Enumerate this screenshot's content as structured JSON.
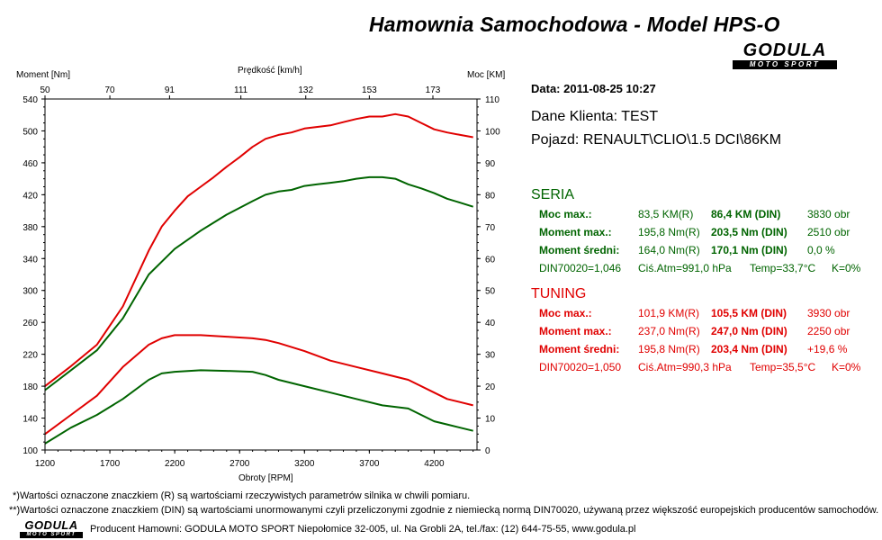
{
  "header": {
    "title": "Hamownia Samochodowa   -   Model HPS-O",
    "logo_main": "GODULA",
    "logo_sub": "MOTO SPORT"
  },
  "info": {
    "date": "Data: 2011-08-25  10:27",
    "client": "Dane Klienta: TEST",
    "vehicle": "Pojazd: RENAULT\\CLIO\\1.5 DCI\\86KM"
  },
  "seria": {
    "title": "SERIA",
    "rows": [
      {
        "label": "Moc max.:",
        "r": "83,5 KM(R)",
        "din": "86,4 KM (DIN)",
        "extra": "3830 obr"
      },
      {
        "label": "Moment max.:",
        "r": "195,8 Nm(R)",
        "din": "203,5 Nm (DIN)",
        "extra": "2510 obr"
      },
      {
        "label": "Moment średni:",
        "r": "164,0 Nm(R)",
        "din": "170,1 Nm (DIN)",
        "extra": "0,0 %"
      }
    ],
    "footer": {
      "din": "DIN70020=1,046",
      "atm": "Ciś.Atm=991,0 hPa",
      "temp": "Temp=33,7°C",
      "k": "K=0%"
    }
  },
  "tuning": {
    "title": "TUNING",
    "rows": [
      {
        "label": "Moc max.:",
        "r": "101,9 KM(R)",
        "din": "105,5 KM (DIN)",
        "extra": "3930 obr"
      },
      {
        "label": "Moment max.:",
        "r": "237,0 Nm(R)",
        "din": "247,0 Nm (DIN)",
        "extra": "2250 obr"
      },
      {
        "label": "Moment średni:",
        "r": "195,8 Nm(R)",
        "din": "203,4 Nm (DIN)",
        "extra": "+19,6 %"
      }
    ],
    "footer": {
      "din": "DIN70020=1,050",
      "atm": "Ciś.Atm=990,3 hPa",
      "temp": "Temp=35,5°C",
      "k": "K=0%"
    }
  },
  "notes": {
    "r": "*)Wartości oznaczone znaczkiem (R) są wartościami rzeczywistych parametrów silnika w chwili pomiaru.",
    "din": "**)Wartości oznaczone znaczkiem (DIN) są wartościami unormowanymi czyli przeliczonymi zgodnie z niemiecką normą DIN70020, używaną przez większość europejskich producentów samochodów.",
    "producer": "Producent Hamowni: GODULA MOTO SPORT Niepołomice 32-005, ul. Na Grobli 2A, tel./fax: (12) 644-75-55, www.godula.pl"
  },
  "colors": {
    "seria": "#006400",
    "tuning": "#e00000"
  },
  "chart_data": {
    "type": "line",
    "xlabel": "Obroty [RPM]",
    "ylabel_left": "Moment [Nm]",
    "ylabel_right": "Moc [KM]",
    "top_axis_label": "Prędkość [km/h]",
    "xlim": [
      1200,
      4530
    ],
    "ylim_left": [
      100,
      540
    ],
    "ylim_right": [
      0,
      110
    ],
    "x_ticks": [
      1200,
      1700,
      2200,
      2700,
      3200,
      3700,
      4200
    ],
    "y_left_ticks": [
      100,
      140,
      180,
      220,
      260,
      300,
      340,
      380,
      420,
      460,
      500,
      540
    ],
    "y_right_ticks": [
      0,
      10,
      20,
      30,
      40,
      50,
      60,
      70,
      80,
      90,
      100,
      110
    ],
    "top_ticks": [
      {
        "rpm": 1200,
        "label": "50"
      },
      {
        "rpm": 1700,
        "label": "70"
      },
      {
        "rpm": 2160,
        "label": "91"
      },
      {
        "rpm": 2710,
        "label": "111"
      },
      {
        "rpm": 3210,
        "label": "132"
      },
      {
        "rpm": 3700,
        "label": "153"
      },
      {
        "rpm": 4190,
        "label": "173"
      }
    ],
    "series": [
      {
        "group": "TUNING",
        "quantity": "Moment",
        "axis": "left",
        "color": "#e00000",
        "x": [
          1200,
          1400,
          1600,
          1800,
          2000,
          2100,
          2200,
          2300,
          2400,
          2500,
          2600,
          2700,
          2800,
          2900,
          3000,
          3100,
          3200,
          3300,
          3400,
          3500,
          3600,
          3700,
          3800,
          3900,
          4000,
          4100,
          4200,
          4300,
          4400,
          4500
        ],
        "y": [
          180,
          205,
          232,
          280,
          350,
          380,
          400,
          418,
          430,
          442,
          455,
          467,
          480,
          490,
          495,
          498,
          503,
          505,
          507,
          511,
          515,
          518,
          518,
          521,
          518,
          510,
          502,
          498,
          495,
          492
        ]
      },
      {
        "group": "SERIA",
        "quantity": "Moment",
        "axis": "left",
        "color": "#006400",
        "x": [
          1200,
          1400,
          1600,
          1800,
          2000,
          2200,
          2400,
          2600,
          2800,
          2900,
          3000,
          3100,
          3200,
          3300,
          3400,
          3500,
          3600,
          3700,
          3800,
          3900,
          4000,
          4100,
          4200,
          4300,
          4400,
          4500
        ],
        "y": [
          175,
          200,
          225,
          265,
          320,
          352,
          375,
          395,
          412,
          420,
          424,
          426,
          431,
          433,
          435,
          437,
          440,
          442,
          442,
          440,
          433,
          428,
          422,
          415,
          410,
          405
        ]
      },
      {
        "group": "TUNING",
        "quantity": "Moc",
        "axis": "right",
        "color": "#e00000",
        "x": [
          1200,
          1400,
          1600,
          1800,
          2000,
          2100,
          2200,
          2400,
          2600,
          2800,
          2900,
          3000,
          3200,
          3400,
          3600,
          3800,
          4000,
          4200,
          4300,
          4400,
          4500
        ],
        "y": [
          5,
          11,
          17,
          26,
          33,
          35,
          36,
          36,
          35.5,
          35,
          34.5,
          33.5,
          31,
          28,
          26,
          24,
          22,
          18,
          16,
          15,
          14
        ]
      },
      {
        "group": "SERIA",
        "quantity": "Moc",
        "axis": "right",
        "color": "#006400",
        "x": [
          1200,
          1400,
          1600,
          1800,
          2000,
          2100,
          2200,
          2400,
          2600,
          2800,
          2900,
          3000,
          3200,
          3400,
          3600,
          3800,
          4000,
          4200,
          4300,
          4400,
          4500
        ],
        "y": [
          2,
          7,
          11,
          16,
          22,
          24,
          24.5,
          25,
          24.8,
          24.5,
          23.5,
          22,
          20,
          18,
          16,
          14,
          13,
          9,
          8,
          7,
          6
        ]
      }
    ]
  }
}
